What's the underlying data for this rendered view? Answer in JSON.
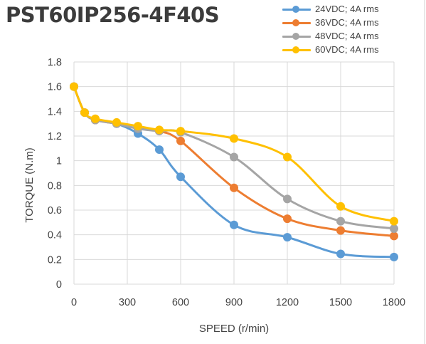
{
  "chart_data": {
    "type": "line",
    "title": "PST60IP256-4F40S",
    "xlabel": "SPEED (r/min)",
    "ylabel": "TORQUE (N.m)",
    "xlim": [
      0,
      1800
    ],
    "ylim": [
      0,
      1.8
    ],
    "x_ticks": [
      "0",
      "300",
      "600",
      "900",
      "1200",
      "1500",
      "1800"
    ],
    "y_ticks": [
      "0",
      "0.2",
      "0.4",
      "0.6",
      "0.8",
      "1",
      "1.2",
      "1.4",
      "1.6",
      "1.8"
    ],
    "grid": true,
    "legend_position": "top-right",
    "series": [
      {
        "name": "24VDC; 4A rms",
        "color": "#5b9bd5",
        "points": [
          [
            0,
            1.6
          ],
          [
            60,
            1.39
          ],
          [
            120,
            1.33
          ],
          [
            240,
            1.3
          ],
          [
            360,
            1.22
          ],
          [
            480,
            1.09
          ],
          [
            600,
            0.87
          ],
          [
            900,
            0.48
          ],
          [
            1200,
            0.38
          ],
          [
            1500,
            0.245
          ],
          [
            1800,
            0.22
          ]
        ]
      },
      {
        "name": "36VDC; 4A rms",
        "color": "#ed7d31",
        "points": [
          [
            0,
            1.6
          ],
          [
            60,
            1.39
          ],
          [
            120,
            1.33
          ],
          [
            240,
            1.3
          ],
          [
            360,
            1.26
          ],
          [
            480,
            1.24
          ],
          [
            600,
            1.16
          ],
          [
            900,
            0.78
          ],
          [
            1200,
            0.53
          ],
          [
            1500,
            0.435
          ],
          [
            1800,
            0.39
          ]
        ]
      },
      {
        "name": "48VDC; 4A rms",
        "color": "#a5a5a5",
        "points": [
          [
            0,
            1.6
          ],
          [
            60,
            1.39
          ],
          [
            120,
            1.33
          ],
          [
            240,
            1.3
          ],
          [
            360,
            1.26
          ],
          [
            480,
            1.24
          ],
          [
            600,
            1.23
          ],
          [
            900,
            1.03
          ],
          [
            1200,
            0.69
          ],
          [
            1500,
            0.51
          ],
          [
            1800,
            0.45
          ]
        ]
      },
      {
        "name": "60VDC; 4A rms",
        "color": "#ffc000",
        "points": [
          [
            0,
            1.6
          ],
          [
            60,
            1.39
          ],
          [
            120,
            1.34
          ],
          [
            240,
            1.31
          ],
          [
            360,
            1.28
          ],
          [
            480,
            1.25
          ],
          [
            600,
            1.24
          ],
          [
            900,
            1.18
          ],
          [
            1200,
            1.03
          ],
          [
            1500,
            0.63
          ],
          [
            1800,
            0.51
          ]
        ]
      }
    ]
  },
  "colors": {
    "grid": "#d9d9d9",
    "tick_text": "#444444",
    "title": "#3c3c3c",
    "frame": "#d0d0d0"
  }
}
